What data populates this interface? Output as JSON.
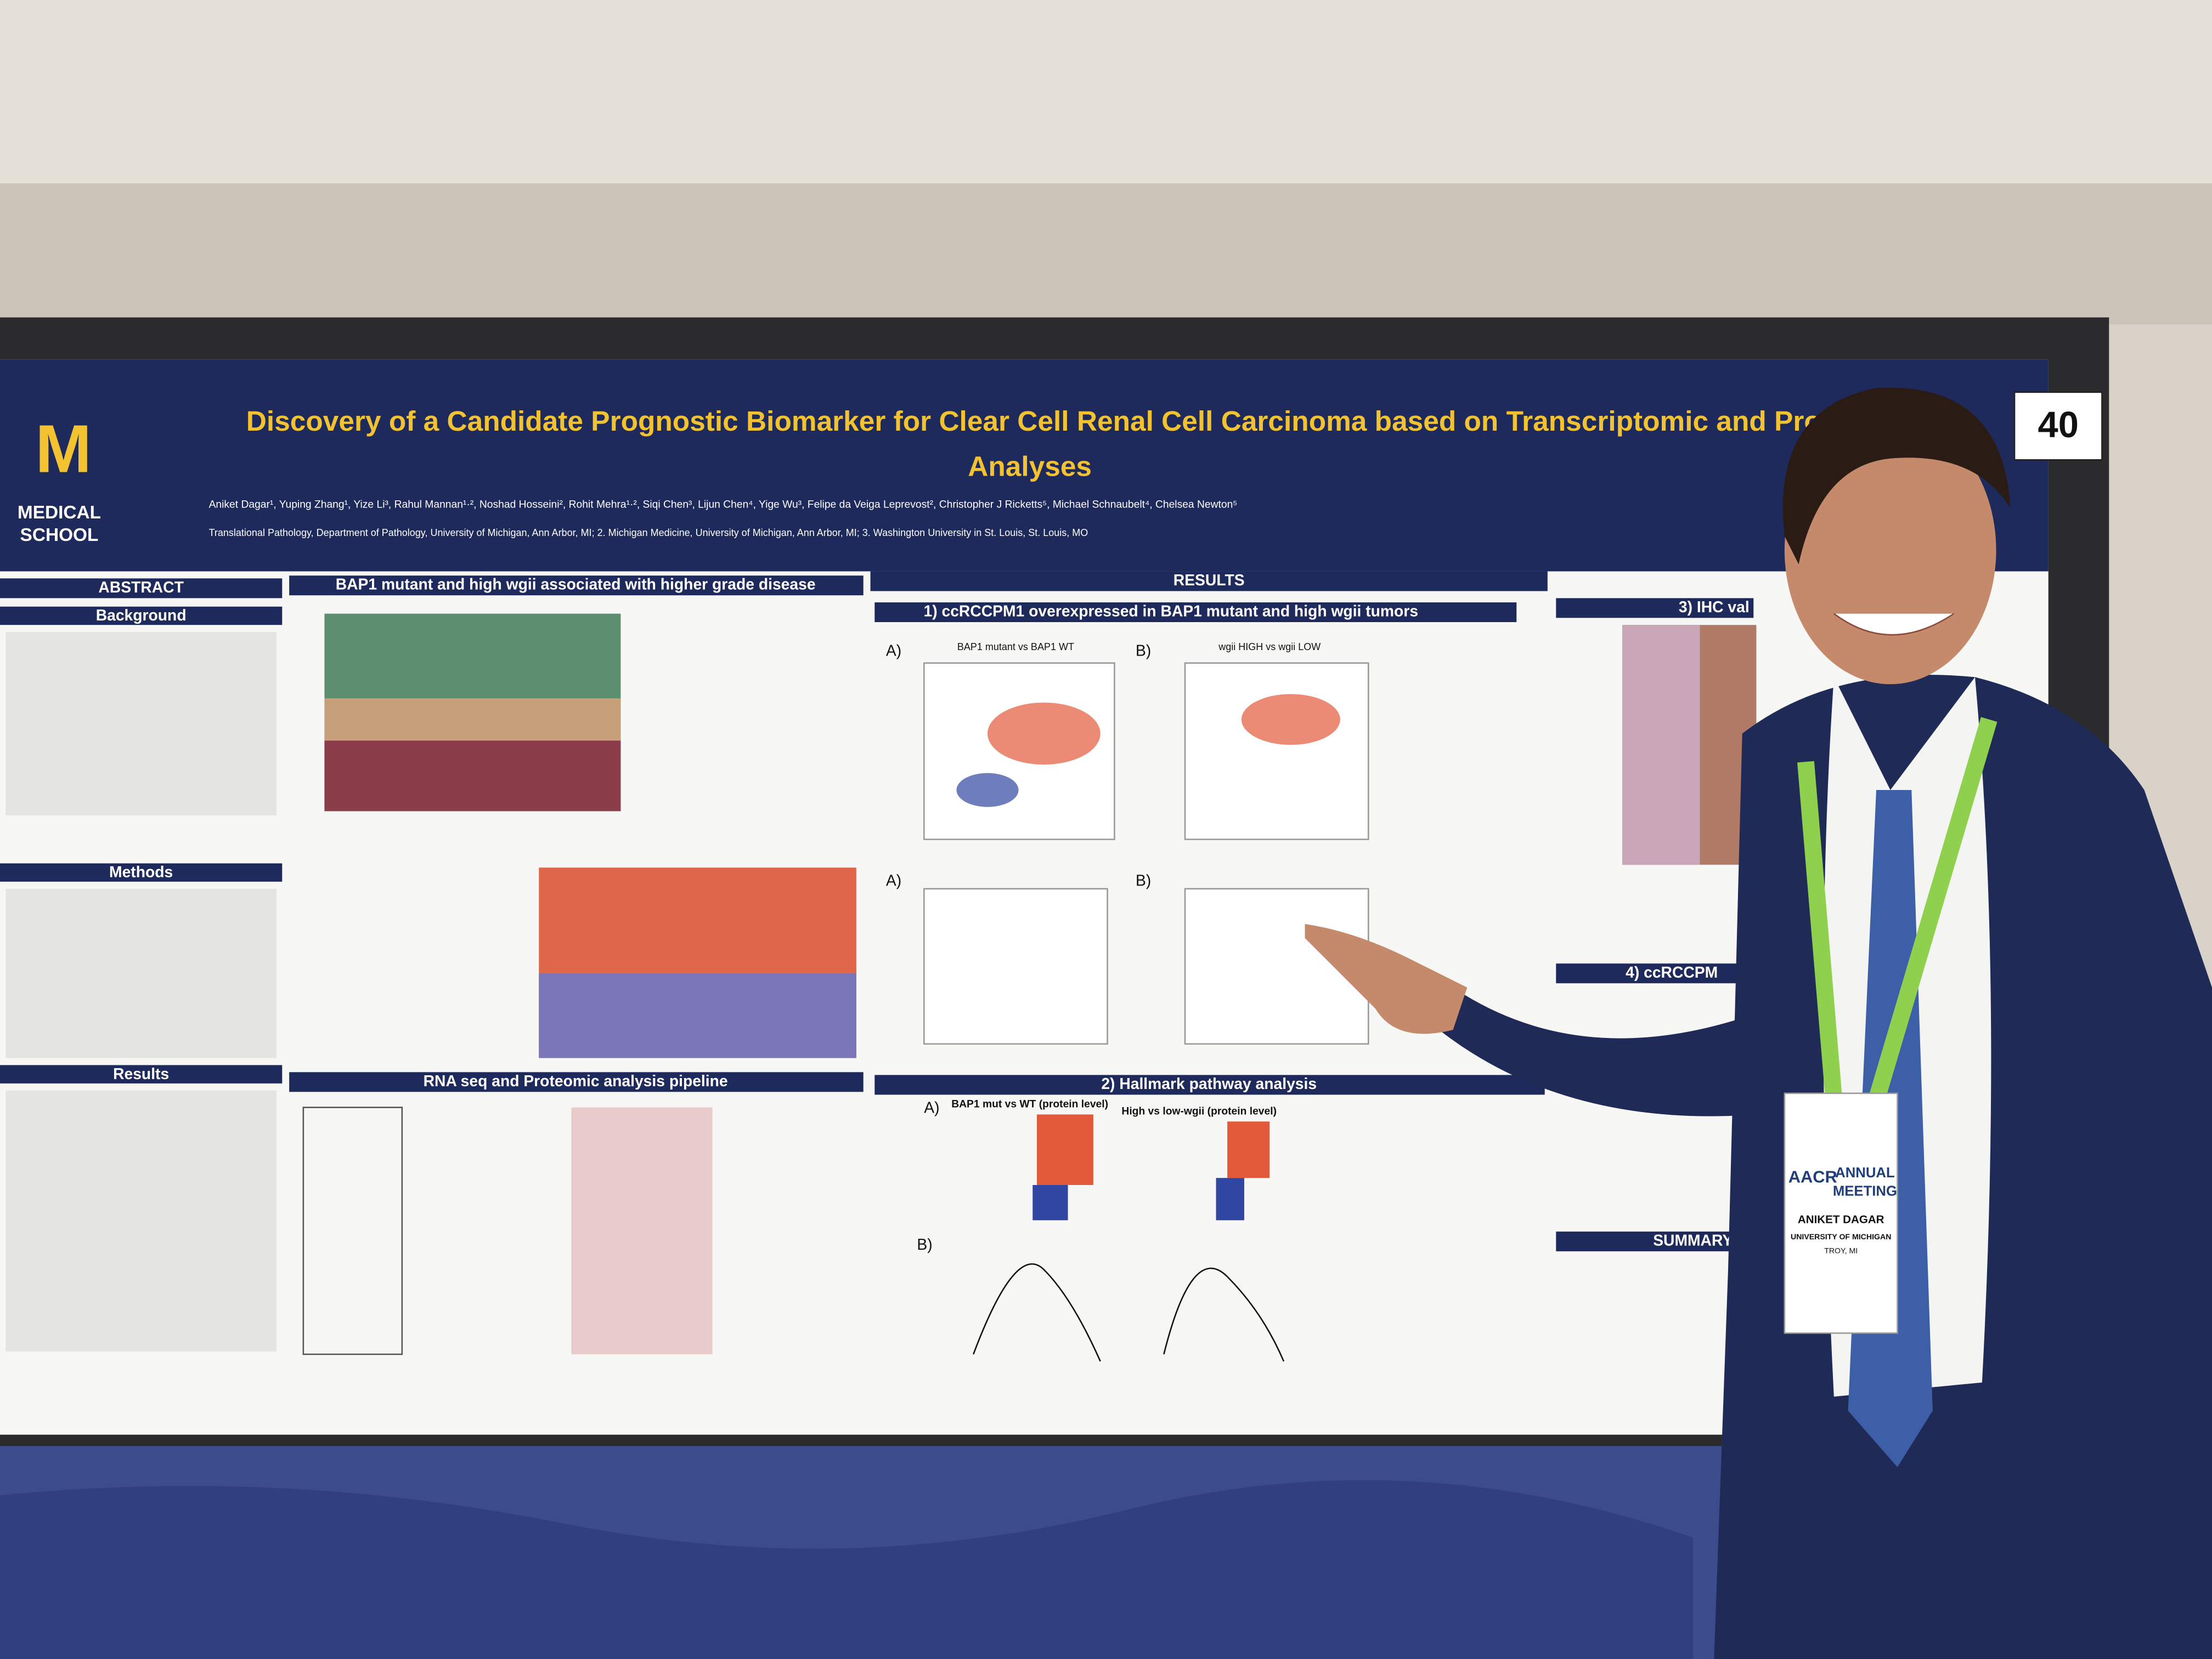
{
  "poster": {
    "title_line1": "Discovery of a Candidate Prognostic Biomarker for Clear Cell Renal Cell Carcinoma based on Transcriptomic and Proteomic",
    "title_line2": "Analyses",
    "logo_letter": "M",
    "logo_line1": "MEDICAL",
    "logo_line2": "SCHOOL",
    "board_number": "40",
    "authors": "Aniket Dagar¹, Yuping Zhang¹, Yize Li³, Rahul Mannan¹·², Noshad Hosseini², Rohit Mehra¹·², Siqi Chen³, Lijun Chen⁴, Yige Wu³, Felipe da Veiga Leprevost², Christopher J Ricketts⁵, Michael Schnaubelt⁴, Chelsea Newton⁵",
    "affiliations": "Translational Pathology, Department of Pathology, University of Michigan, Ann Arbor, MI; 2. Michigan Medicine, University of Michigan, Ann Arbor, MI; 3. Washington University in St. Louis, St. Louis, MO",
    "sections": {
      "abstract": "ABSTRACT",
      "background": "Background",
      "methods": "Methods",
      "results_left": "Results",
      "heatmap": "BAP1 mutant and high wgii associated with higher grade disease",
      "pipeline": "RNA seq and Proteomic analysis pipeline",
      "results": "RESULTS",
      "results_1": "1) ccRCCPM1 overexpressed in BAP1 mutant and high wgii tumors",
      "results_2": "2) Hallmark pathway analysis",
      "results_3": "3) IHC val",
      "results_4": "4) ccRCCPM",
      "summary": "SUMMARY"
    },
    "panel_labels": [
      "A)",
      "B)",
      "A)",
      "B)",
      "A)",
      "B)"
    ],
    "plot_titles": [
      "BAP1 mutant vs BAP1 WT",
      "wgii HIGH vs wgii LOW",
      "BAP1 mut vs WT (protein level)",
      "High vs low-wgii (protein level)"
    ]
  },
  "badge": {
    "org": "AACR",
    "event_line1": "ANNUAL",
    "event_line2": "MEETING",
    "name": "ANIKET DAGAR",
    "affiliation": "UNIVERSITY OF MICHIGAN",
    "location": "TROY, MI"
  }
}
